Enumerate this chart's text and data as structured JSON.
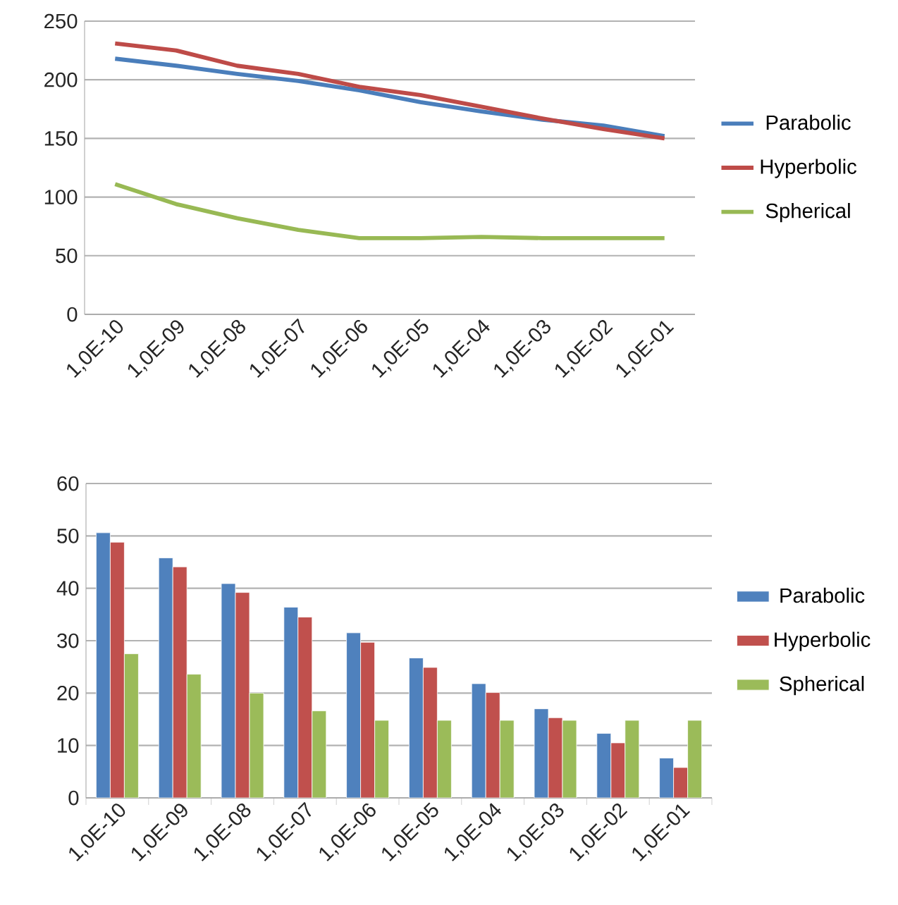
{
  "chart_data": [
    {
      "type": "line",
      "categories": [
        "1,0E-10",
        "1,0E-09",
        "1,0E-08",
        "1,0E-07",
        "1,0E-06",
        "1,0E-05",
        "1,0E-04",
        "1,0E-03",
        "1,0E-02",
        "1,0E-01"
      ],
      "series": [
        {
          "name": "Parabolic",
          "color": "#4a7ebb",
          "values": [
            218,
            212,
            205,
            199,
            191,
            181,
            173,
            166,
            161,
            152
          ]
        },
        {
          "name": "Hyperbolic",
          "color": "#be4b48",
          "values": [
            231,
            225,
            212,
            205,
            194,
            187,
            177,
            167,
            158,
            150
          ]
        },
        {
          "name": "Spherical",
          "color": "#98b954",
          "values": [
            111,
            94,
            82,
            72,
            65,
            65,
            66,
            65,
            65,
            65
          ]
        }
      ],
      "ylim": [
        0,
        250
      ],
      "yticks": [
        0,
        50,
        100,
        150,
        200,
        250
      ],
      "grid": "y",
      "legend": "right"
    },
    {
      "type": "bar",
      "categories": [
        "1,0E-10",
        "1,0E-09",
        "1,0E-08",
        "1,0E-07",
        "1,0E-06",
        "1,0E-05",
        "1,0E-04",
        "1,0E-03",
        "1,0E-02",
        "1,0E-01"
      ],
      "series": [
        {
          "name": "Parabolic",
          "color": "#4f81bd",
          "values": [
            50.6,
            45.8,
            40.9,
            36.4,
            31.5,
            26.7,
            21.8,
            17.0,
            12.3,
            7.6
          ]
        },
        {
          "name": "Hyperbolic",
          "color": "#c0504d",
          "values": [
            48.8,
            44.1,
            39.2,
            34.5,
            29.7,
            24.9,
            20.1,
            15.3,
            10.5,
            5.8
          ]
        },
        {
          "name": "Spherical",
          "color": "#9bbb59",
          "values": [
            27.5,
            23.6,
            20.0,
            16.6,
            14.8,
            14.8,
            14.8,
            14.8,
            14.8,
            14.8
          ]
        }
      ],
      "ylim": [
        0,
        60
      ],
      "yticks": [
        0,
        10,
        20,
        30,
        40,
        50,
        60
      ],
      "grid": "y",
      "legend": "right"
    }
  ]
}
